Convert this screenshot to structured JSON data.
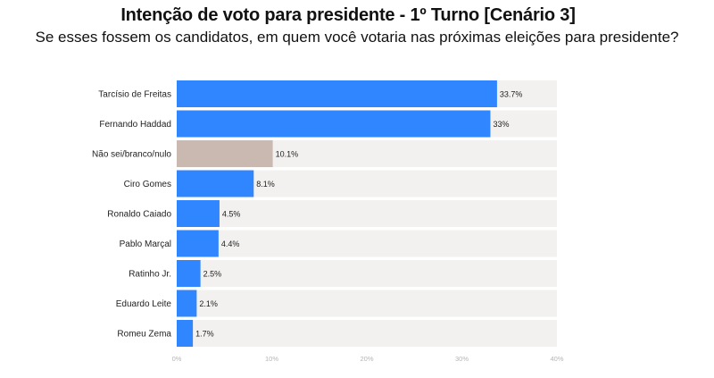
{
  "header": {
    "title": "Intenção de voto para presidente - 1º Turno [Cenário 3]",
    "subtitle": "Se esses fossem os candidatos, em quem você votaria nas próximas eleições para presidente?"
  },
  "colors": {
    "bar": "#2f86ff",
    "bar_other": "#c9b9b0",
    "track": "#f2f1ef"
  },
  "chart_data": {
    "type": "bar",
    "orientation": "horizontal",
    "title": "Intenção de voto para presidente - 1º Turno [Cenário 3]",
    "subtitle": "Se esses fossem os candidatos, em quem você votaria nas próximas eleições para presidente?",
    "categories": [
      "Tarcísio de Freitas",
      "Fernando Haddad",
      "Não sei/branco/nulo",
      "Ciro Gomes",
      "Ronaldo Caiado",
      "Pablo Marçal",
      "Ratinho Jr.",
      "Eduardo Leite",
      "Romeu Zema"
    ],
    "values": [
      33.7,
      33,
      10.1,
      8.1,
      4.5,
      4.4,
      2.5,
      2.1,
      1.7
    ],
    "value_labels": [
      "33.7%",
      "33%",
      "10.1%",
      "8.1%",
      "4.5%",
      "4.4%",
      "2.5%",
      "2.1%",
      "1.7%"
    ],
    "highlight_category": "Não sei/branco/nulo",
    "xlim": [
      0,
      40
    ],
    "xticks": [
      0,
      10,
      20,
      30,
      40
    ],
    "xtick_labels": [
      "0%",
      "10%",
      "20%",
      "30%",
      "40%"
    ],
    "xlabel": "",
    "ylabel": "",
    "grid": false,
    "legend": "none"
  }
}
